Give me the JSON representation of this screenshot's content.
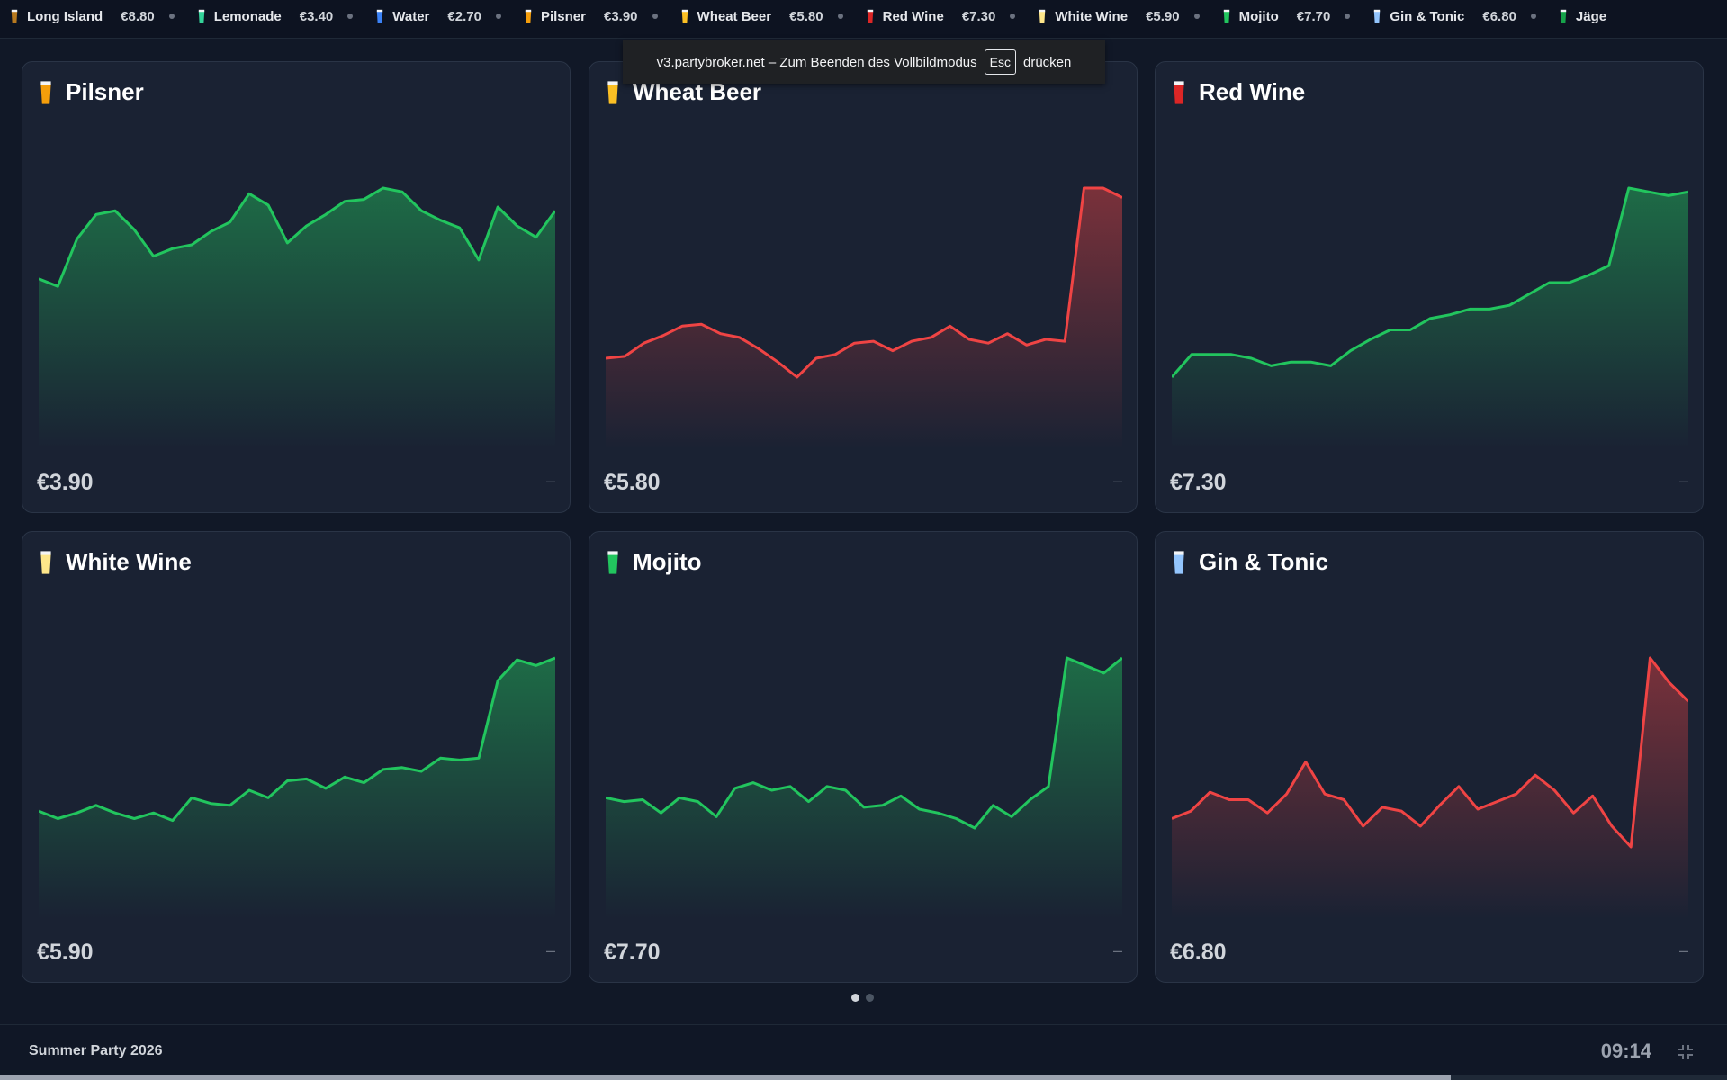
{
  "ticker": [
    {
      "name": "Long Island",
      "price": "€8.80",
      "icon": "long-island-icon",
      "color": "#b7791f"
    },
    {
      "name": "Lemonade",
      "price": "€3.40",
      "icon": "lemonade-icon",
      "color": "#34d399"
    },
    {
      "name": "Water",
      "price": "€2.70",
      "icon": "water-icon",
      "color": "#3b82f6"
    },
    {
      "name": "Pilsner",
      "price": "€3.90",
      "icon": "pilsner-icon",
      "color": "#f59e0b"
    },
    {
      "name": "Wheat Beer",
      "price": "€5.80",
      "icon": "wheat-beer-icon",
      "color": "#fbbf24"
    },
    {
      "name": "Red Wine",
      "price": "€7.30",
      "icon": "red-wine-icon",
      "color": "#dc2626"
    },
    {
      "name": "White Wine",
      "price": "€5.90",
      "icon": "white-wine-icon",
      "color": "#fde68a"
    },
    {
      "name": "Mojito",
      "price": "€7.70",
      "icon": "mojito-icon",
      "color": "#22c55e"
    },
    {
      "name": "Gin & Tonic",
      "price": "€6.80",
      "icon": "gin-tonic-icon",
      "color": "#93c5fd"
    },
    {
      "name": "Jäge",
      "price": "",
      "icon": "jaeger-icon",
      "color": "#16a34a"
    }
  ],
  "fullscreen_notice": {
    "text_before": "v3.partybroker.net – Zum Beenden des Vollbildmodus",
    "key": "Esc",
    "text_after": "drücken"
  },
  "colors": {
    "up": "#22c55e",
    "down": "#ef4444"
  },
  "cards": [
    {
      "name": "Pilsner",
      "price": "€3.90",
      "change": "–",
      "trend": "up",
      "icon": "pilsner-icon",
      "icon_color": "#f59e0b"
    },
    {
      "name": "Wheat Beer",
      "price": "€5.80",
      "change": "–",
      "trend": "down",
      "icon": "wheat-beer-icon",
      "icon_color": "#fbbf24"
    },
    {
      "name": "Red Wine",
      "price": "€7.30",
      "change": "–",
      "trend": "up",
      "icon": "red-wine-icon",
      "icon_color": "#dc2626"
    },
    {
      "name": "White Wine",
      "price": "€5.90",
      "change": "–",
      "trend": "up",
      "icon": "white-wine-icon",
      "icon_color": "#fde68a"
    },
    {
      "name": "Mojito",
      "price": "€7.70",
      "change": "–",
      "trend": "up",
      "icon": "mojito-icon",
      "icon_color": "#22c55e"
    },
    {
      "name": "Gin & Tonic",
      "price": "€6.80",
      "change": "–",
      "trend": "down",
      "icon": "gin-tonic-icon",
      "icon_color": "#93c5fd"
    }
  ],
  "chart_data": [
    {
      "type": "line",
      "title": "Pilsner",
      "y": [
        0.52,
        0.48,
        0.73,
        0.86,
        0.88,
        0.78,
        0.64,
        0.68,
        0.7,
        0.77,
        0.82,
        0.97,
        0.91,
        0.71,
        0.8,
        0.86,
        0.93,
        0.94,
        1.0,
        0.98,
        0.88,
        0.83,
        0.79,
        0.62,
        0.9,
        0.8,
        0.74,
        0.88
      ]
    },
    {
      "type": "line",
      "title": "Wheat Beer",
      "y": [
        0.1,
        0.11,
        0.18,
        0.22,
        0.27,
        0.28,
        0.23,
        0.21,
        0.15,
        0.08,
        0.0,
        0.1,
        0.12,
        0.18,
        0.19,
        0.14,
        0.19,
        0.21,
        0.27,
        0.2,
        0.18,
        0.23,
        0.17,
        0.2,
        0.19,
        1.0,
        1.0,
        0.95
      ]
    },
    {
      "type": "line",
      "title": "Red Wine",
      "y": [
        0.0,
        0.12,
        0.12,
        0.12,
        0.1,
        0.06,
        0.08,
        0.08,
        0.06,
        0.14,
        0.2,
        0.25,
        0.25,
        0.31,
        0.33,
        0.36,
        0.36,
        0.38,
        0.44,
        0.5,
        0.5,
        0.54,
        0.59,
        1.0,
        0.98,
        0.96,
        0.98
      ]
    },
    {
      "type": "line",
      "title": "White Wine",
      "y": [
        0.19,
        0.15,
        0.18,
        0.22,
        0.18,
        0.15,
        0.18,
        0.14,
        0.26,
        0.23,
        0.22,
        0.3,
        0.26,
        0.35,
        0.36,
        0.31,
        0.37,
        0.34,
        0.41,
        0.42,
        0.4,
        0.47,
        0.46,
        0.47,
        0.88,
        0.99,
        0.96,
        1.0
      ]
    },
    {
      "type": "line",
      "title": "Mojito",
      "y": [
        0.26,
        0.24,
        0.25,
        0.18,
        0.26,
        0.24,
        0.16,
        0.31,
        0.34,
        0.3,
        0.32,
        0.24,
        0.32,
        0.3,
        0.21,
        0.22,
        0.27,
        0.2,
        0.18,
        0.15,
        0.1,
        0.22,
        0.16,
        0.25,
        0.32,
        1.0,
        0.96,
        0.92,
        1.0
      ]
    },
    {
      "type": "line",
      "title": "Gin & Tonic",
      "y": [
        0.15,
        0.19,
        0.29,
        0.25,
        0.25,
        0.18,
        0.28,
        0.45,
        0.28,
        0.25,
        0.11,
        0.21,
        0.19,
        0.11,
        0.22,
        0.32,
        0.2,
        0.24,
        0.28,
        0.38,
        0.3,
        0.18,
        0.27,
        0.11,
        0.0,
        1.0,
        0.87,
        0.77
      ]
    }
  ],
  "pager": {
    "pages": 2,
    "current": 1
  },
  "footer": {
    "event": "Summer Party 2026",
    "clock": "09:14"
  },
  "progress": 0.84
}
